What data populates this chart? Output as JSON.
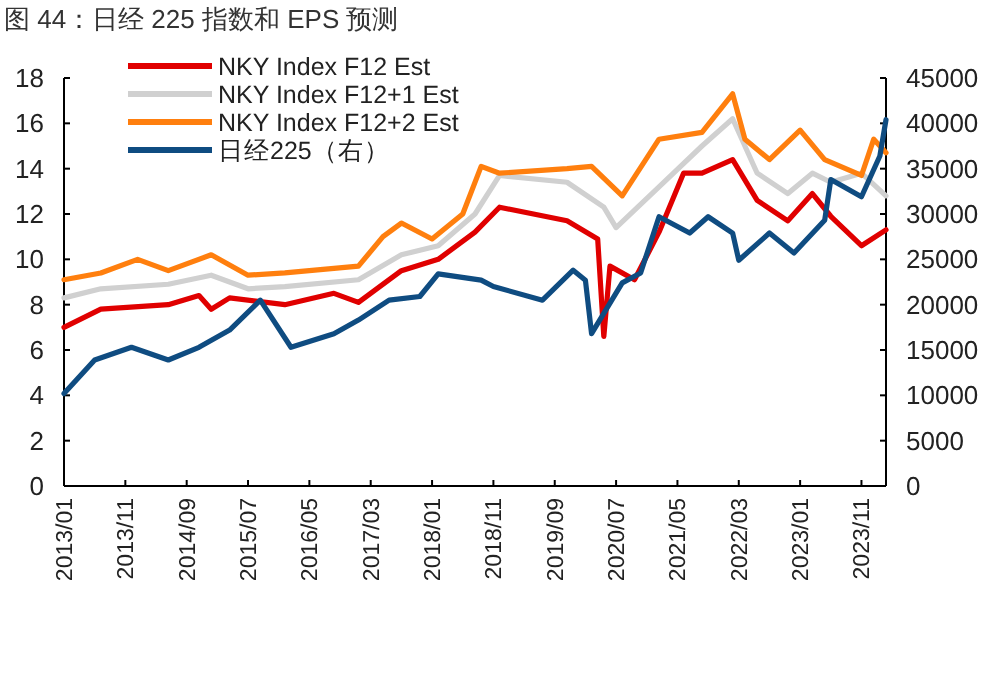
{
  "chart_data": {
    "type": "line",
    "title": "图 44：日经 225 指数和 EPS 预测",
    "legend": "top left",
    "xlim": [
      "2013-01",
      "2024-03"
    ],
    "xticks": [
      {
        "value": "2013-01",
        "label": "2013/01"
      },
      {
        "value": "2013-11",
        "label": "2013/11"
      },
      {
        "value": "2014-09",
        "label": "2014/09"
      },
      {
        "value": "2015-07",
        "label": "2015/07"
      },
      {
        "value": "2016-05",
        "label": "2016/05"
      },
      {
        "value": "2017-03",
        "label": "2017/03"
      },
      {
        "value": "2018-01",
        "label": "2018/01"
      },
      {
        "value": "2018-11",
        "label": "2018/11"
      },
      {
        "value": "2019-09",
        "label": "2019/09"
      },
      {
        "value": "2020-07",
        "label": "2020/07"
      },
      {
        "value": "2021-05",
        "label": "2021/05"
      },
      {
        "value": "2022-03",
        "label": "2022/03"
      },
      {
        "value": "2023-01",
        "label": "2023/01"
      },
      {
        "value": "2023-11",
        "label": "2023/11"
      }
    ],
    "ylim": [
      0,
      18
    ],
    "yticks": [
      0,
      2,
      4,
      6,
      8,
      10,
      12,
      14,
      16,
      18
    ],
    "y2lim": [
      0,
      45000
    ],
    "y2ticks": [
      0,
      5000,
      10000,
      15000,
      20000,
      25000,
      30000,
      35000,
      40000,
      45000
    ],
    "series": [
      {
        "name": "NKY Index F12 Est",
        "type": "line",
        "color": "#e00000",
        "x": [
          "2013-01",
          "2013-07",
          "2014-06",
          "2014-11",
          "2015-01",
          "2015-04",
          "2016-01",
          "2016-09",
          "2017-01",
          "2017-08",
          "2018-02",
          "2018-08",
          "2018-12",
          "2019-11",
          "2020-04",
          "2020-05",
          "2020-06",
          "2020-10",
          "2021-02",
          "2021-06",
          "2021-09",
          "2022-02",
          "2022-06",
          "2022-11",
          "2023-03",
          "2023-06",
          "2023-11",
          "2024-03"
        ],
        "values": [
          7.0,
          7.8,
          8.0,
          8.4,
          7.8,
          8.3,
          8.0,
          8.5,
          8.1,
          9.5,
          10.0,
          11.2,
          12.3,
          11.7,
          10.9,
          6.6,
          9.7,
          9.1,
          11.2,
          13.8,
          13.8,
          14.4,
          12.6,
          11.7,
          12.9,
          11.9,
          10.6,
          11.3
        ]
      },
      {
        "name": "NKY Index F12+1 Est",
        "type": "line",
        "color": "#d0d0d0",
        "x": [
          "2013-01",
          "2013-07",
          "2014-06",
          "2015-01",
          "2015-07",
          "2016-01",
          "2017-01",
          "2017-08",
          "2018-02",
          "2018-08",
          "2018-12",
          "2019-11",
          "2020-05",
          "2020-07",
          "2021-02",
          "2021-09",
          "2022-02",
          "2022-06",
          "2022-11",
          "2023-03",
          "2023-06",
          "2023-11",
          "2024-03"
        ],
        "values": [
          8.3,
          8.7,
          8.9,
          9.3,
          8.7,
          8.8,
          9.1,
          10.2,
          10.6,
          12.0,
          13.7,
          13.4,
          12.3,
          11.4,
          13.2,
          15.0,
          16.2,
          13.8,
          12.9,
          13.8,
          13.4,
          13.8,
          12.8
        ]
      },
      {
        "name": "NKY Index F12+2 Est",
        "type": "line",
        "color": "#ff7f0e",
        "x": [
          "2013-01",
          "2013-07",
          "2014-01",
          "2014-06",
          "2015-01",
          "2015-07",
          "2016-01",
          "2017-01",
          "2017-05",
          "2017-08",
          "2018-01",
          "2018-06",
          "2018-09",
          "2018-12",
          "2019-11",
          "2020-03",
          "2020-08",
          "2021-02",
          "2021-09",
          "2022-02",
          "2022-04",
          "2022-08",
          "2023-01",
          "2023-05",
          "2023-11",
          "2024-01",
          "2024-03"
        ],
        "values": [
          9.1,
          9.4,
          10.0,
          9.5,
          10.2,
          9.3,
          9.4,
          9.7,
          11.0,
          11.6,
          10.9,
          12.0,
          14.1,
          13.8,
          14.0,
          14.1,
          12.8,
          15.3,
          15.6,
          17.3,
          15.3,
          14.4,
          15.7,
          14.4,
          13.7,
          15.3,
          14.7
        ]
      },
      {
        "name": "日经225（右）",
        "type": "line",
        "axis": "y2",
        "color": "#0f4c81",
        "x": [
          "2013-01",
          "2013-06",
          "2013-12",
          "2014-06",
          "2014-11",
          "2015-04",
          "2015-09",
          "2016-02",
          "2016-09",
          "2017-01",
          "2017-06",
          "2017-11",
          "2018-02",
          "2018-09",
          "2018-11",
          "2019-07",
          "2019-12",
          "2020-02",
          "2020-03",
          "2020-08",
          "2020-11",
          "2021-02",
          "2021-07",
          "2021-10",
          "2022-02",
          "2022-03",
          "2022-08",
          "2022-12",
          "2023-05",
          "2023-06",
          "2023-11",
          "2024-02",
          "2024-03"
        ],
        "values": [
          10200,
          13900,
          15300,
          13900,
          15300,
          17200,
          20500,
          15300,
          16800,
          18300,
          20500,
          20900,
          23400,
          22700,
          22000,
          20500,
          23800,
          22700,
          16800,
          22400,
          23500,
          29700,
          27900,
          29700,
          27900,
          24900,
          27900,
          25700,
          29300,
          33800,
          31900,
          36400,
          40400
        ]
      }
    ]
  }
}
